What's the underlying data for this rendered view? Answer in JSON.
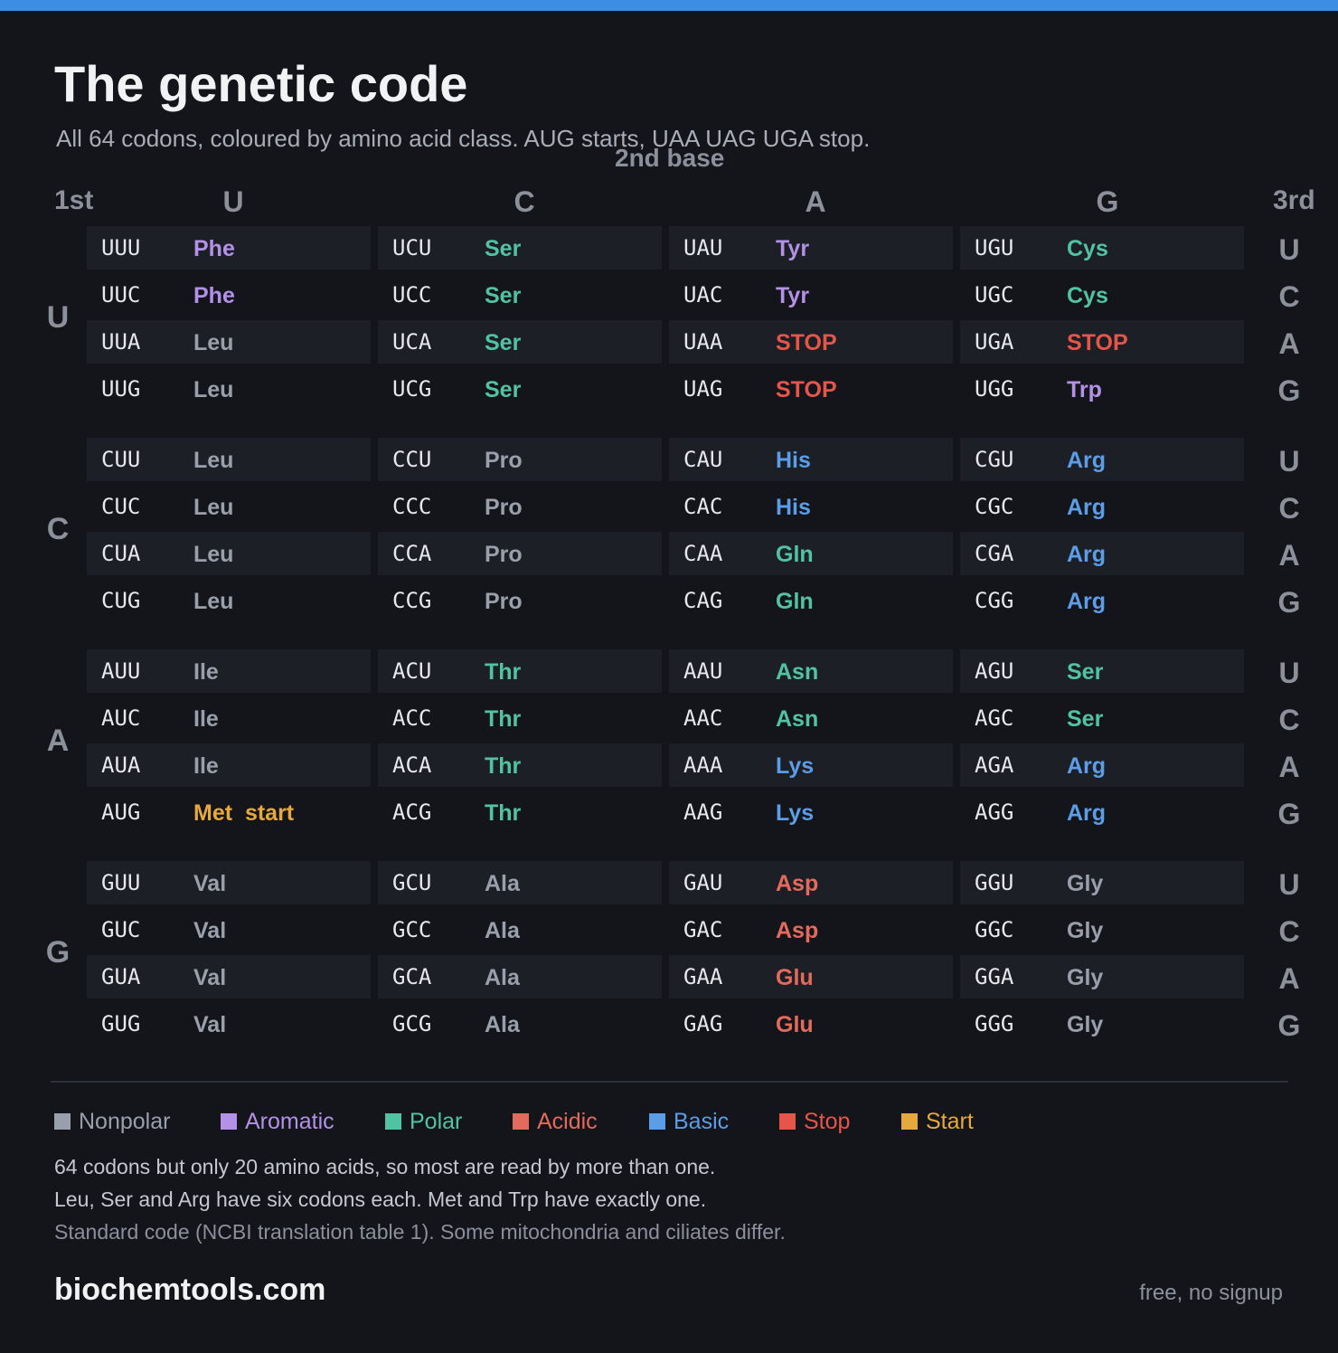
{
  "header": {
    "title": "The genetic code",
    "subtitle": "All 64 codons, coloured by amino acid class. AUG starts, UAA UAG UGA stop."
  },
  "table": {
    "second_base_label": "2nd base",
    "first_label": "1st",
    "third_label": "3rd",
    "columns": [
      "U",
      "C",
      "A",
      "G"
    ],
    "third_bases": [
      "U",
      "C",
      "A",
      "G"
    ],
    "groups": [
      {
        "first": "U",
        "rows": [
          [
            {
              "codon": "UUU",
              "aa": "Phe",
              "cls": "aromatic"
            },
            {
              "codon": "UCU",
              "aa": "Ser",
              "cls": "polar"
            },
            {
              "codon": "UAU",
              "aa": "Tyr",
              "cls": "aromatic"
            },
            {
              "codon": "UGU",
              "aa": "Cys",
              "cls": "polar"
            }
          ],
          [
            {
              "codon": "UUC",
              "aa": "Phe",
              "cls": "aromatic"
            },
            {
              "codon": "UCC",
              "aa": "Ser",
              "cls": "polar"
            },
            {
              "codon": "UAC",
              "aa": "Tyr",
              "cls": "aromatic"
            },
            {
              "codon": "UGC",
              "aa": "Cys",
              "cls": "polar"
            }
          ],
          [
            {
              "codon": "UUA",
              "aa": "Leu",
              "cls": "nonpolar"
            },
            {
              "codon": "UCA",
              "aa": "Ser",
              "cls": "polar"
            },
            {
              "codon": "UAA",
              "aa": "STOP",
              "cls": "stop"
            },
            {
              "codon": "UGA",
              "aa": "STOP",
              "cls": "stop"
            }
          ],
          [
            {
              "codon": "UUG",
              "aa": "Leu",
              "cls": "nonpolar"
            },
            {
              "codon": "UCG",
              "aa": "Ser",
              "cls": "polar"
            },
            {
              "codon": "UAG",
              "aa": "STOP",
              "cls": "stop"
            },
            {
              "codon": "UGG",
              "aa": "Trp",
              "cls": "aromatic"
            }
          ]
        ]
      },
      {
        "first": "C",
        "rows": [
          [
            {
              "codon": "CUU",
              "aa": "Leu",
              "cls": "nonpolar"
            },
            {
              "codon": "CCU",
              "aa": "Pro",
              "cls": "nonpolar"
            },
            {
              "codon": "CAU",
              "aa": "His",
              "cls": "basic"
            },
            {
              "codon": "CGU",
              "aa": "Arg",
              "cls": "basic"
            }
          ],
          [
            {
              "codon": "CUC",
              "aa": "Leu",
              "cls": "nonpolar"
            },
            {
              "codon": "CCC",
              "aa": "Pro",
              "cls": "nonpolar"
            },
            {
              "codon": "CAC",
              "aa": "His",
              "cls": "basic"
            },
            {
              "codon": "CGC",
              "aa": "Arg",
              "cls": "basic"
            }
          ],
          [
            {
              "codon": "CUA",
              "aa": "Leu",
              "cls": "nonpolar"
            },
            {
              "codon": "CCA",
              "aa": "Pro",
              "cls": "nonpolar"
            },
            {
              "codon": "CAA",
              "aa": "Gln",
              "cls": "polar"
            },
            {
              "codon": "CGA",
              "aa": "Arg",
              "cls": "basic"
            }
          ],
          [
            {
              "codon": "CUG",
              "aa": "Leu",
              "cls": "nonpolar"
            },
            {
              "codon": "CCG",
              "aa": "Pro",
              "cls": "nonpolar"
            },
            {
              "codon": "CAG",
              "aa": "Gln",
              "cls": "polar"
            },
            {
              "codon": "CGG",
              "aa": "Arg",
              "cls": "basic"
            }
          ]
        ]
      },
      {
        "first": "A",
        "rows": [
          [
            {
              "codon": "AUU",
              "aa": "Ile",
              "cls": "nonpolar"
            },
            {
              "codon": "ACU",
              "aa": "Thr",
              "cls": "polar"
            },
            {
              "codon": "AAU",
              "aa": "Asn",
              "cls": "polar"
            },
            {
              "codon": "AGU",
              "aa": "Ser",
              "cls": "polar"
            }
          ],
          [
            {
              "codon": "AUC",
              "aa": "Ile",
              "cls": "nonpolar"
            },
            {
              "codon": "ACC",
              "aa": "Thr",
              "cls": "polar"
            },
            {
              "codon": "AAC",
              "aa": "Asn",
              "cls": "polar"
            },
            {
              "codon": "AGC",
              "aa": "Ser",
              "cls": "polar"
            }
          ],
          [
            {
              "codon": "AUA",
              "aa": "Ile",
              "cls": "nonpolar"
            },
            {
              "codon": "ACA",
              "aa": "Thr",
              "cls": "polar"
            },
            {
              "codon": "AAA",
              "aa": "Lys",
              "cls": "basic"
            },
            {
              "codon": "AGA",
              "aa": "Arg",
              "cls": "basic"
            }
          ],
          [
            {
              "codon": "AUG",
              "aa": "Met  start",
              "cls": "start"
            },
            {
              "codon": "ACG",
              "aa": "Thr",
              "cls": "polar"
            },
            {
              "codon": "AAG",
              "aa": "Lys",
              "cls": "basic"
            },
            {
              "codon": "AGG",
              "aa": "Arg",
              "cls": "basic"
            }
          ]
        ]
      },
      {
        "first": "G",
        "rows": [
          [
            {
              "codon": "GUU",
              "aa": "Val",
              "cls": "nonpolar"
            },
            {
              "codon": "GCU",
              "aa": "Ala",
              "cls": "nonpolar"
            },
            {
              "codon": "GAU",
              "aa": "Asp",
              "cls": "acidic"
            },
            {
              "codon": "GGU",
              "aa": "Gly",
              "cls": "nonpolar"
            }
          ],
          [
            {
              "codon": "GUC",
              "aa": "Val",
              "cls": "nonpolar"
            },
            {
              "codon": "GCC",
              "aa": "Ala",
              "cls": "nonpolar"
            },
            {
              "codon": "GAC",
              "aa": "Asp",
              "cls": "acidic"
            },
            {
              "codon": "GGC",
              "aa": "Gly",
              "cls": "nonpolar"
            }
          ],
          [
            {
              "codon": "GUA",
              "aa": "Val",
              "cls": "nonpolar"
            },
            {
              "codon": "GCA",
              "aa": "Ala",
              "cls": "nonpolar"
            },
            {
              "codon": "GAA",
              "aa": "Glu",
              "cls": "acidic"
            },
            {
              "codon": "GGA",
              "aa": "Gly",
              "cls": "nonpolar"
            }
          ],
          [
            {
              "codon": "GUG",
              "aa": "Val",
              "cls": "nonpolar"
            },
            {
              "codon": "GCG",
              "aa": "Ala",
              "cls": "nonpolar"
            },
            {
              "codon": "GAG",
              "aa": "Glu",
              "cls": "acidic"
            },
            {
              "codon": "GGG",
              "aa": "Gly",
              "cls": "nonpolar"
            }
          ]
        ]
      }
    ]
  },
  "legend": [
    {
      "label": "Nonpolar",
      "cls": "nonpolar",
      "color": "#9aa0ab"
    },
    {
      "label": "Aromatic",
      "cls": "aromatic",
      "color": "#b291e6"
    },
    {
      "label": "Polar",
      "cls": "polar",
      "color": "#52c3a0"
    },
    {
      "label": "Acidic",
      "cls": "acidic",
      "color": "#e36a5c"
    },
    {
      "label": "Basic",
      "cls": "basic",
      "color": "#5b9de6"
    },
    {
      "label": "Stop",
      "cls": "stop",
      "color": "#e65549"
    },
    {
      "label": "Start",
      "cls": "start",
      "color": "#e6a93d"
    }
  ],
  "notes": {
    "line1": "64 codons but only 20 amino acids, so most are read by more than one.",
    "line2": "Leu, Ser and Arg have six codons each. Met and Trp have exactly one.",
    "line3": "Standard code (NCBI translation table 1). Some mitochondria and ciliates differ."
  },
  "footer": {
    "brand": "biochemtools.com",
    "tagline": "free, no signup"
  },
  "colors": {
    "accent_bar": "#3b8ee3",
    "background": "#13151a",
    "row_shade": "#1c1f26"
  }
}
